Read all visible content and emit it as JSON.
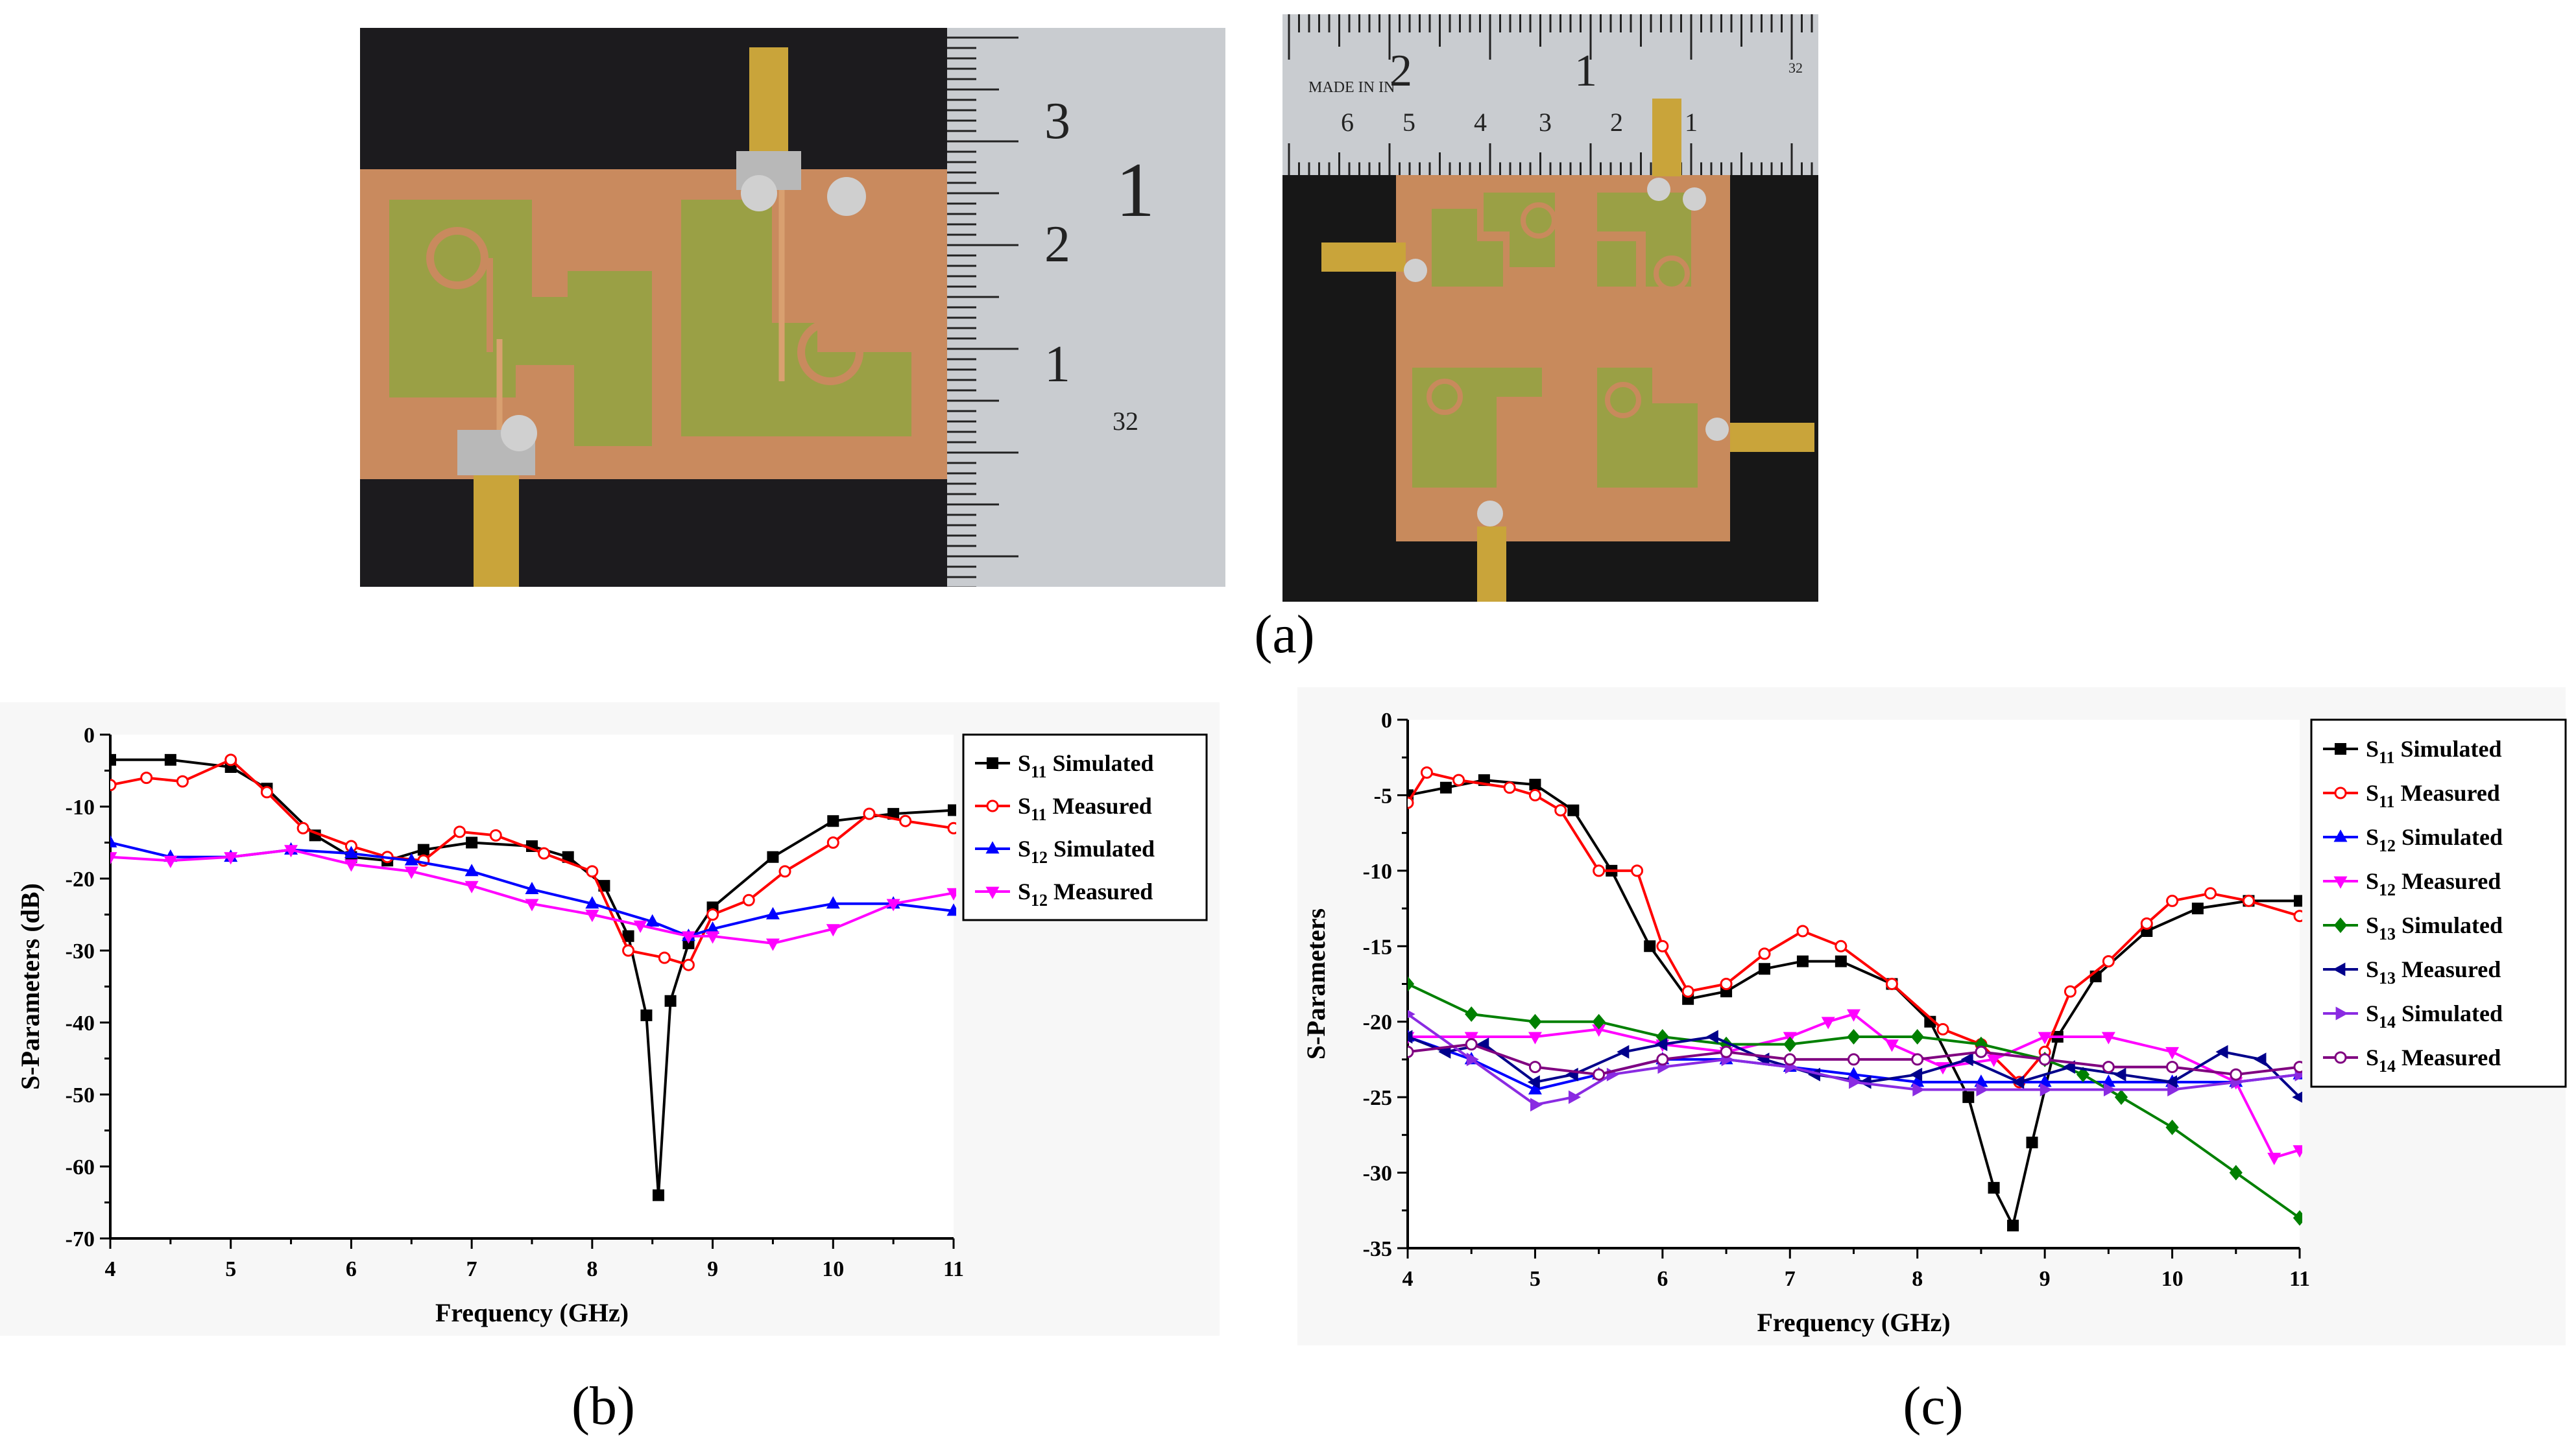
{
  "captions": {
    "a": "(a)",
    "b": "(b)",
    "c": "(c)"
  },
  "photos": {
    "left": {
      "ruler_numbers": [
        "3",
        "1",
        "2",
        "1",
        "32"
      ]
    },
    "right": {
      "ruler_numbers": [
        "2",
        "1",
        "6",
        "5",
        "4",
        "3",
        "2",
        "1",
        "32"
      ],
      "ruler_text": "MADE IN IN"
    }
  },
  "colors": {
    "s11_sim": "#000000",
    "s11_meas": "#ff0000",
    "s12_sim": "#0000ff",
    "s12_meas": "#ff00ff",
    "s13_sim": "#008000",
    "s13_meas": "#00008b",
    "s14_sim": "#8a2be2",
    "s14_meas": "#800080"
  },
  "chart_data": [
    {
      "id": "b",
      "type": "line",
      "title": "",
      "xlabel": "Frequency (GHz)",
      "ylabel": "S-Parameters (dB)",
      "xlim": [
        4,
        11
      ],
      "ylim": [
        -70,
        0
      ],
      "xticks": [
        4,
        5,
        6,
        7,
        8,
        9,
        10,
        11
      ],
      "yticks": [
        -70,
        -60,
        -50,
        -40,
        -30,
        -20,
        -10,
        0
      ],
      "legend_position": "top-right",
      "series": [
        {
          "name": "S11 Simulated",
          "base": "S",
          "sub": "11",
          "label": "Simulated",
          "color": "#000000",
          "marker": "square",
          "x": [
            4,
            4.5,
            5,
            5.3,
            5.7,
            6,
            6.3,
            6.6,
            7,
            7.5,
            7.8,
            8.1,
            8.3,
            8.45,
            8.55,
            8.65,
            8.8,
            9,
            9.5,
            10,
            10.5,
            11
          ],
          "y": [
            -3.5,
            -3.5,
            -4.5,
            -7.5,
            -14,
            -17,
            -17.5,
            -16,
            -15,
            -15.5,
            -17,
            -21,
            -28,
            -39,
            -64,
            -37,
            -29,
            -24,
            -17,
            -12,
            -11,
            -10.5
          ]
        },
        {
          "name": "S11 Measured",
          "base": "S",
          "sub": "11",
          "label": "Measured",
          "color": "#ff0000",
          "marker": "circle",
          "x": [
            4,
            4.3,
            4.6,
            5,
            5.3,
            5.6,
            6,
            6.3,
            6.6,
            6.9,
            7.2,
            7.6,
            8,
            8.3,
            8.6,
            8.8,
            9,
            9.3,
            9.6,
            10,
            10.3,
            10.6,
            11
          ],
          "y": [
            -7,
            -6,
            -6.5,
            -3.5,
            -8,
            -13,
            -15.5,
            -17,
            -17.5,
            -13.5,
            -14,
            -16.5,
            -19,
            -30,
            -31,
            -32,
            -25,
            -23,
            -19,
            -15,
            -11,
            -12,
            -13
          ]
        },
        {
          "name": "S12 Simulated",
          "base": "S",
          "sub": "12",
          "label": "Simulated",
          "color": "#0000ff",
          "marker": "triangle",
          "x": [
            4,
            4.5,
            5,
            5.5,
            6,
            6.5,
            7,
            7.5,
            8,
            8.5,
            8.8,
            9,
            9.5,
            10,
            10.5,
            11
          ],
          "y": [
            -15,
            -17,
            -17,
            -16,
            -16.5,
            -17.5,
            -19,
            -21.5,
            -23.5,
            -26,
            -28,
            -27,
            -25,
            -23.5,
            -23.5,
            -24.5
          ]
        },
        {
          "name": "S12 Measured",
          "base": "S",
          "sub": "12",
          "label": "Measured",
          "color": "#ff00ff",
          "marker": "tri-down",
          "x": [
            4,
            4.5,
            5,
            5.5,
            6,
            6.5,
            7,
            7.5,
            8,
            8.4,
            8.8,
            9,
            9.5,
            10,
            10.5,
            11
          ],
          "y": [
            -17,
            -17.5,
            -17,
            -16,
            -18,
            -19,
            -21,
            -23.5,
            -25,
            -26.5,
            -28,
            -28,
            -29,
            -27,
            -23.5,
            -22
          ]
        }
      ]
    },
    {
      "id": "c",
      "type": "line",
      "title": "",
      "xlabel": "Frequency (GHz)",
      "ylabel": "S-Parameters",
      "xlim": [
        4,
        11
      ],
      "ylim": [
        -35,
        0
      ],
      "xticks": [
        4,
        5,
        6,
        7,
        8,
        9,
        10,
        11
      ],
      "yticks": [
        -35,
        -30,
        -25,
        -20,
        -15,
        -10,
        -5,
        0
      ],
      "legend_position": "top-right",
      "series": [
        {
          "name": "S11 Simulated",
          "base": "S",
          "sub": "11",
          "label": "Simulated",
          "color": "#000000",
          "marker": "square",
          "x": [
            4,
            4.3,
            4.6,
            5,
            5.3,
            5.6,
            5.9,
            6.2,
            6.5,
            6.8,
            7.1,
            7.4,
            7.8,
            8.1,
            8.4,
            8.6,
            8.75,
            8.9,
            9.1,
            9.4,
            9.8,
            10.2,
            10.6,
            11
          ],
          "y": [
            -5,
            -4.5,
            -4,
            -4.3,
            -6,
            -10,
            -15,
            -18.5,
            -18,
            -16.5,
            -16,
            -16,
            -17.5,
            -20,
            -25,
            -31,
            -33.5,
            -28,
            -21,
            -17,
            -14,
            -12.5,
            -12,
            -12
          ]
        },
        {
          "name": "S11 Measured",
          "base": "S",
          "sub": "11",
          "label": "Measured",
          "color": "#ff0000",
          "marker": "circle",
          "x": [
            4,
            4.15,
            4.4,
            4.8,
            5,
            5.2,
            5.5,
            5.8,
            6,
            6.2,
            6.5,
            6.8,
            7.1,
            7.4,
            7.8,
            8.2,
            8.5,
            8.8,
            9,
            9.2,
            9.5,
            9.8,
            10,
            10.3,
            10.6,
            11
          ],
          "y": [
            -5.5,
            -3.5,
            -4,
            -4.5,
            -5,
            -6,
            -10,
            -10,
            -15,
            -18,
            -17.5,
            -15.5,
            -14,
            -15,
            -17.5,
            -20.5,
            -21.5,
            -24,
            -22,
            -18,
            -16,
            -13.5,
            -12,
            -11.5,
            -12,
            -13
          ]
        },
        {
          "name": "S12 Simulated",
          "base": "S",
          "sub": "12",
          "label": "Simulated",
          "color": "#0000ff",
          "marker": "triangle",
          "x": [
            4,
            4.5,
            5,
            5.5,
            6,
            6.5,
            7,
            7.5,
            8,
            8.5,
            9,
            9.5,
            10,
            10.5,
            11
          ],
          "y": [
            -21,
            -22.5,
            -24.5,
            -23.5,
            -22.5,
            -22.5,
            -23,
            -23.5,
            -24,
            -24,
            -24,
            -24,
            -24,
            -24,
            -23.5
          ]
        },
        {
          "name": "S12 Measured",
          "base": "S",
          "sub": "12",
          "label": "Measured",
          "color": "#ff00ff",
          "marker": "tri-down",
          "x": [
            4,
            4.5,
            5,
            5.5,
            6,
            6.5,
            7,
            7.3,
            7.5,
            7.8,
            8.2,
            8.6,
            9,
            9.5,
            10,
            10.5,
            10.8,
            11
          ],
          "y": [
            -21,
            -21,
            -21,
            -20.5,
            -21.5,
            -22,
            -21,
            -20,
            -19.5,
            -21.5,
            -23,
            -22.5,
            -21,
            -21,
            -22,
            -24,
            -29,
            -28.5
          ]
        },
        {
          "name": "S13 Simulated",
          "base": "S",
          "sub": "13",
          "label": "Simulated",
          "color": "#008000",
          "marker": "diamond",
          "x": [
            4,
            4.5,
            5,
            5.5,
            6,
            6.5,
            7,
            7.5,
            8,
            8.5,
            9,
            9.3,
            9.6,
            10,
            10.5,
            11
          ],
          "y": [
            -17.5,
            -19.5,
            -20,
            -20,
            -21,
            -21.5,
            -21.5,
            -21,
            -21,
            -21.5,
            -22.5,
            -23.5,
            -25,
            -27,
            -30,
            -33
          ]
        },
        {
          "name": "S13 Measured",
          "base": "S",
          "sub": "13",
          "label": "Measured",
          "color": "#00008b",
          "marker": "tri-left",
          "x": [
            4,
            4.3,
            4.6,
            5,
            5.3,
            5.7,
            6,
            6.4,
            6.8,
            7.2,
            7.6,
            8,
            8.4,
            8.8,
            9.2,
            9.6,
            10,
            10.4,
            10.7,
            11
          ],
          "y": [
            -21,
            -22,
            -21.5,
            -24,
            -23.5,
            -22,
            -21.5,
            -21,
            -22.5,
            -23.5,
            -24,
            -23.5,
            -22.5,
            -24,
            -23,
            -23.5,
            -24,
            -22,
            -22.5,
            -25
          ]
        },
        {
          "name": "S14 Simulated",
          "base": "S",
          "sub": "14",
          "label": "Simulated",
          "color": "#8a2be2",
          "marker": "tri-right",
          "x": [
            4,
            4.5,
            5,
            5.3,
            5.6,
            6,
            6.5,
            7,
            7.5,
            8,
            8.5,
            9,
            9.5,
            10,
            10.5,
            11
          ],
          "y": [
            -19.5,
            -22.5,
            -25.5,
            -25,
            -23.5,
            -23,
            -22.5,
            -23,
            -24,
            -24.5,
            -24.5,
            -24.5,
            -24.5,
            -24.5,
            -24,
            -23.5
          ]
        },
        {
          "name": "S14 Measured",
          "base": "S",
          "sub": "14",
          "label": "Measured",
          "color": "#800080",
          "marker": "circle",
          "x": [
            4,
            4.5,
            5,
            5.5,
            6,
            6.5,
            7,
            7.5,
            8,
            8.5,
            9,
            9.5,
            10,
            10.5,
            11
          ],
          "y": [
            -22,
            -21.5,
            -23,
            -23.5,
            -22.5,
            -22,
            -22.5,
            -22.5,
            -22.5,
            -22,
            -22.5,
            -23,
            -23,
            -23.5,
            -23
          ]
        }
      ]
    }
  ]
}
